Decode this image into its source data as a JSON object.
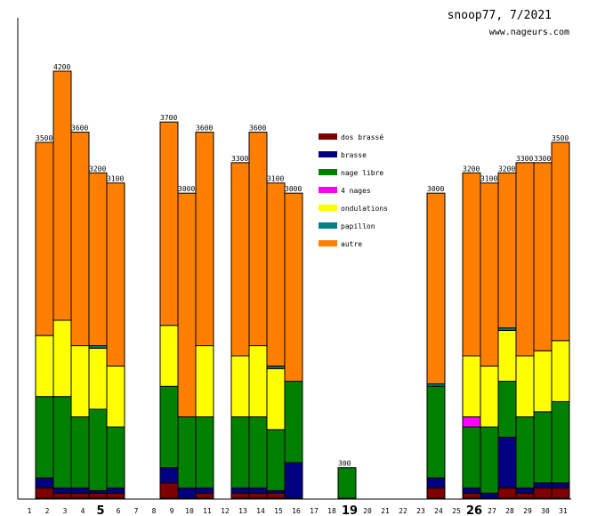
{
  "header": {
    "title": "snoop77, 7/2021",
    "site": "www.nageurs.com"
  },
  "chart_data": {
    "type": "bar",
    "stacked": true,
    "title": "snoop77, 7/2021",
    "xlabel": "",
    "ylabel": "",
    "ylim": [
      0,
      4200
    ],
    "legend_position": "top-left",
    "highlighted_days": [
      5,
      19,
      26
    ],
    "categories": [
      "1",
      "2",
      "3",
      "4",
      "5",
      "6",
      "7",
      "8",
      "9",
      "10",
      "11",
      "12",
      "13",
      "14",
      "15",
      "16",
      "17",
      "18",
      "19",
      "20",
      "21",
      "22",
      "23",
      "24",
      "25",
      "26",
      "27",
      "28",
      "29",
      "30",
      "31"
    ],
    "totals": [
      0,
      3500,
      4200,
      3600,
      3200,
      3100,
      0,
      0,
      3700,
      3000,
      3600,
      0,
      3300,
      3600,
      3100,
      3000,
      0,
      0,
      300,
      0,
      0,
      0,
      0,
      3000,
      0,
      3200,
      3100,
      3200,
      3300,
      3300,
      3500
    ],
    "series": [
      {
        "name": "dos brassé",
        "color": "#800000",
        "values": [
          0,
          100,
          50,
          50,
          50,
          50,
          0,
          0,
          150,
          0,
          50,
          0,
          50,
          50,
          50,
          0,
          0,
          0,
          0,
          0,
          0,
          0,
          0,
          100,
          0,
          50,
          0,
          100,
          50,
          100,
          100
        ]
      },
      {
        "name": "brasse",
        "color": "#000080",
        "values": [
          0,
          100,
          50,
          50,
          25,
          50,
          0,
          0,
          150,
          100,
          50,
          0,
          50,
          50,
          25,
          350,
          0,
          0,
          0,
          0,
          0,
          0,
          0,
          100,
          0,
          50,
          50,
          500,
          50,
          50,
          50
        ]
      },
      {
        "name": "nage libre",
        "color": "#008000",
        "values": [
          0,
          800,
          900,
          700,
          800,
          600,
          0,
          0,
          800,
          700,
          700,
          0,
          700,
          700,
          600,
          800,
          0,
          0,
          300,
          0,
          0,
          0,
          0,
          900,
          0,
          600,
          650,
          550,
          700,
          700,
          800
        ]
      },
      {
        "name": "4 nages",
        "color": "#ff00ff",
        "values": [
          0,
          0,
          0,
          0,
          0,
          0,
          0,
          0,
          0,
          0,
          0,
          0,
          0,
          0,
          0,
          0,
          0,
          0,
          0,
          0,
          0,
          0,
          0,
          0,
          0,
          100,
          0,
          0,
          0,
          0,
          0
        ]
      },
      {
        "name": "ondulations",
        "color": "#ffff00",
        "values": [
          0,
          600,
          750,
          700,
          600,
          600,
          0,
          0,
          600,
          0,
          700,
          0,
          600,
          700,
          600,
          0,
          0,
          0,
          0,
          0,
          0,
          0,
          0,
          0,
          0,
          600,
          600,
          500,
          600,
          600,
          600
        ]
      },
      {
        "name": "papillon",
        "color": "#008080",
        "values": [
          0,
          0,
          0,
          0,
          25,
          0,
          0,
          0,
          0,
          0,
          0,
          0,
          0,
          0,
          25,
          0,
          0,
          0,
          0,
          0,
          0,
          0,
          0,
          25,
          0,
          0,
          0,
          25,
          0,
          0,
          0
        ]
      },
      {
        "name": "autre",
        "color": "#ff8000",
        "values": [
          0,
          1900,
          2450,
          2100,
          1700,
          1800,
          0,
          0,
          2000,
          2200,
          2100,
          0,
          1900,
          2100,
          1800,
          1850,
          0,
          0,
          0,
          0,
          0,
          0,
          0,
          1875,
          0,
          1800,
          1800,
          1525,
          1900,
          1850,
          1950
        ]
      }
    ]
  }
}
